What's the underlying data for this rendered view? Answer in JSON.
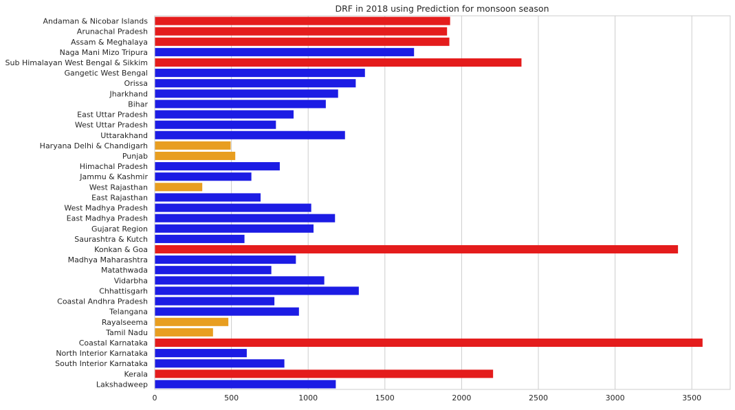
{
  "chart_data": {
    "type": "bar",
    "orientation": "horizontal",
    "title": "DRF in 2018 using Prediction for monsoon season",
    "xlabel": "",
    "ylabel": "",
    "xlim": [
      0,
      3750
    ],
    "x_ticks": [
      0,
      500,
      1000,
      1500,
      2000,
      2500,
      3000,
      3500
    ],
    "grid": "vertical",
    "colors": {
      "red": "#e41c1c",
      "blue": "#1c1ce4",
      "orange": "#e89e20"
    },
    "categories": [
      "Andaman & Nicobar Islands",
      "Arunachal Pradesh",
      "Assam & Meghalaya",
      "Naga Mani Mizo Tripura",
      "Sub Himalayan West Bengal & Sikkim",
      "Gangetic West Bengal",
      "Orissa",
      "Jharkhand",
      "Bihar",
      "East Uttar Pradesh",
      "West Uttar Pradesh",
      "Uttarakhand",
      "Haryana Delhi & Chandigarh",
      "Punjab",
      "Himachal Pradesh",
      "Jammu & Kashmir",
      "West Rajasthan",
      "East Rajasthan",
      "West Madhya Pradesh",
      "East Madhya Pradesh",
      "Gujarat Region",
      "Saurashtra & Kutch",
      "Konkan & Goa",
      "Madhya Maharashtra",
      "Matathwada",
      "Vidarbha",
      "Chhattisgarh",
      "Coastal Andhra Pradesh",
      "Telangana",
      "Rayalseema",
      "Tamil Nadu",
      "Coastal Karnataka",
      "North Interior Karnataka",
      "South Interior Karnataka",
      "Kerala",
      "Lakshadweep"
    ],
    "values": [
      1925,
      1905,
      1920,
      1690,
      2390,
      1370,
      1310,
      1195,
      1115,
      905,
      790,
      1240,
      495,
      525,
      815,
      630,
      310,
      690,
      1020,
      1175,
      1035,
      585,
      3410,
      920,
      760,
      1105,
      1330,
      780,
      940,
      480,
      380,
      3570,
      600,
      845,
      2205,
      1180
    ],
    "bar_colors": [
      "red",
      "red",
      "red",
      "blue",
      "red",
      "blue",
      "blue",
      "blue",
      "blue",
      "blue",
      "blue",
      "blue",
      "orange",
      "orange",
      "blue",
      "blue",
      "orange",
      "blue",
      "blue",
      "blue",
      "blue",
      "blue",
      "red",
      "blue",
      "blue",
      "blue",
      "blue",
      "blue",
      "blue",
      "orange",
      "orange",
      "red",
      "blue",
      "blue",
      "red",
      "blue"
    ]
  }
}
